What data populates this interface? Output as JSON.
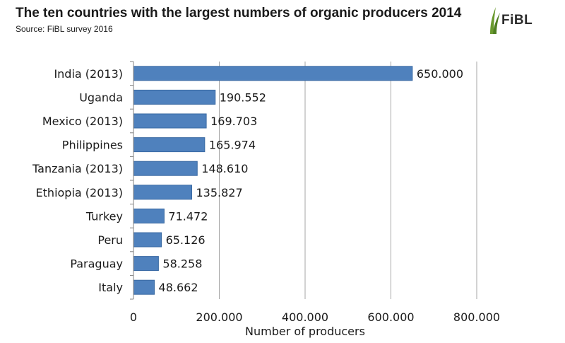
{
  "header": {
    "title": "The ten countries with the largest numbers of organic producers 2014",
    "subtitle": "Source: FiBL survey 2016",
    "logo_text": "FiBL"
  },
  "chart_data": {
    "type": "bar",
    "orientation": "horizontal",
    "categories": [
      "India (2013)",
      "Uganda",
      "Mexico (2013)",
      "Philippines",
      "Tanzania (2013)",
      "Ethiopia (2013)",
      "Turkey",
      "Peru",
      "Paraguay",
      "Italy"
    ],
    "values": [
      650000,
      190552,
      169703,
      165974,
      148610,
      135827,
      71472,
      65126,
      58258,
      48662
    ],
    "data_labels": [
      "650.000",
      "190.552",
      "169.703",
      "165.974",
      "148.610",
      "135.827",
      "71.472",
      "65.126",
      "58.258",
      "48.662"
    ],
    "xlabel": "Number of producers",
    "xlim": [
      0,
      800000
    ],
    "xticks": [
      0,
      200000,
      400000,
      600000,
      800000
    ],
    "xtick_labels": [
      "0",
      "200.000",
      "400.000",
      "600.000",
      "800.000"
    ],
    "grid": "vertical",
    "bar_color": "#4f81bd",
    "bar_edge_color": "#3a6aa3",
    "grid_color": "#a6a6a6"
  }
}
